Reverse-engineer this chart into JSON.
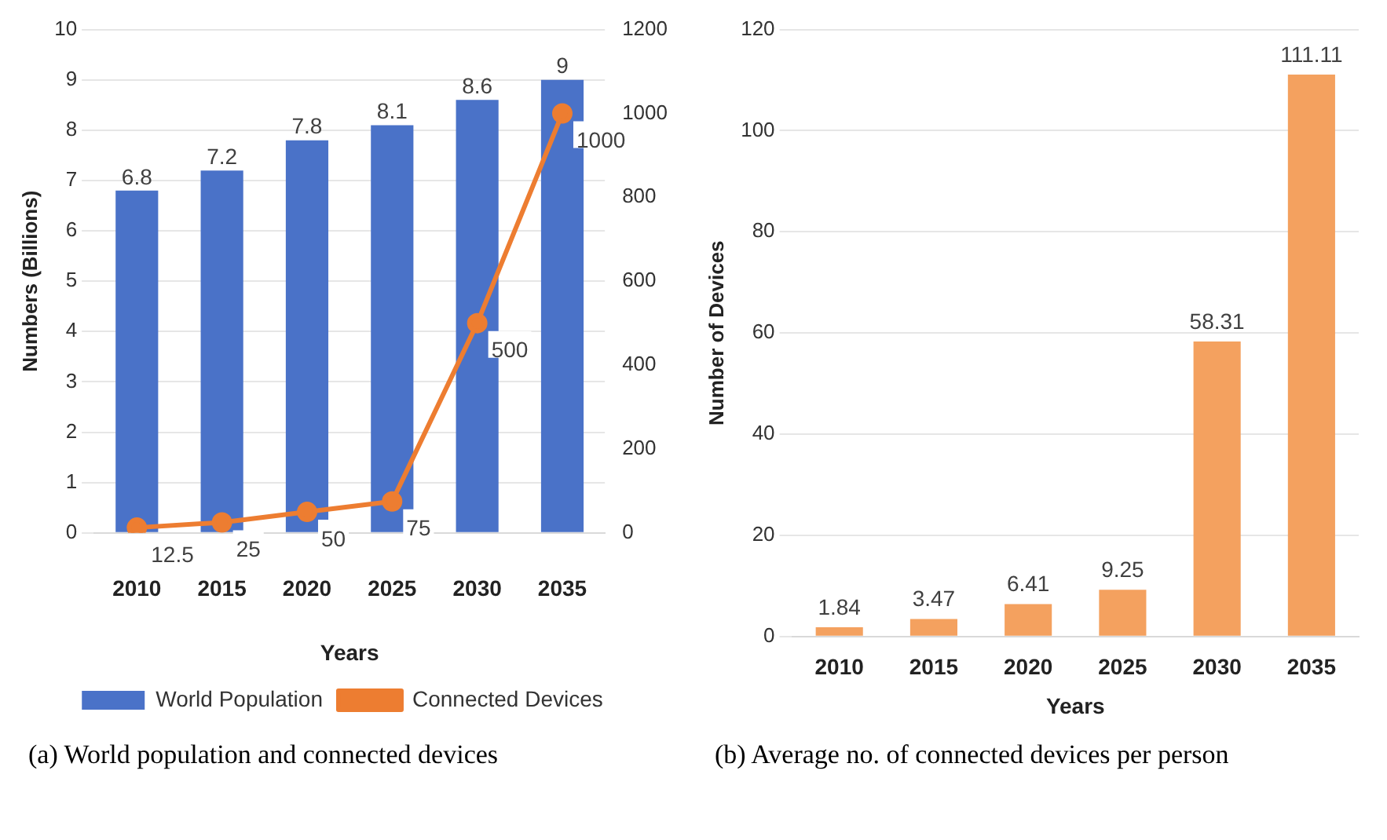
{
  "chart_data": [
    {
      "type": "bar",
      "categories": [
        "2010",
        "2015",
        "2020",
        "2025",
        "2030",
        "2035"
      ],
      "xlabel": "Years",
      "ylabel": "Numbers (Billions)",
      "ylim": [
        0,
        10
      ],
      "yticks": [
        0,
        1,
        2,
        3,
        4,
        5,
        6,
        7,
        8,
        9,
        10
      ],
      "y2lim": [
        0,
        1200
      ],
      "y2ticks": [
        0,
        200,
        400,
        600,
        800,
        1000,
        1200
      ],
      "grid": "y",
      "legend": "bottom",
      "marker": "circle",
      "data_labels": true,
      "series": [
        {
          "name": "World Population",
          "type": "bar",
          "color": "#4a72c8",
          "values": [
            6.8,
            7.2,
            7.8,
            8.1,
            8.6,
            9
          ]
        },
        {
          "name": "Connected Devices",
          "type": "line",
          "axis": "y2",
          "color": "#ed7d31",
          "values": [
            12.5,
            25,
            50,
            75,
            500,
            1000
          ]
        }
      ],
      "annotations": [
        "(a) World population and connected devices"
      ]
    },
    {
      "type": "bar",
      "categories": [
        "2010",
        "2015",
        "2020",
        "2025",
        "2030",
        "2035"
      ],
      "xlabel": "Years",
      "ylabel": "Number of Devices",
      "ylim": [
        0,
        120
      ],
      "yticks": [
        0,
        20,
        40,
        60,
        80,
        100,
        120
      ],
      "grid": "y",
      "data_labels": true,
      "color": "#f4a15f",
      "values": [
        1.84,
        3.47,
        6.41,
        9.25,
        58.31,
        111.11
      ],
      "annotations": [
        "(b) Average no. of connected devices per person"
      ]
    }
  ]
}
